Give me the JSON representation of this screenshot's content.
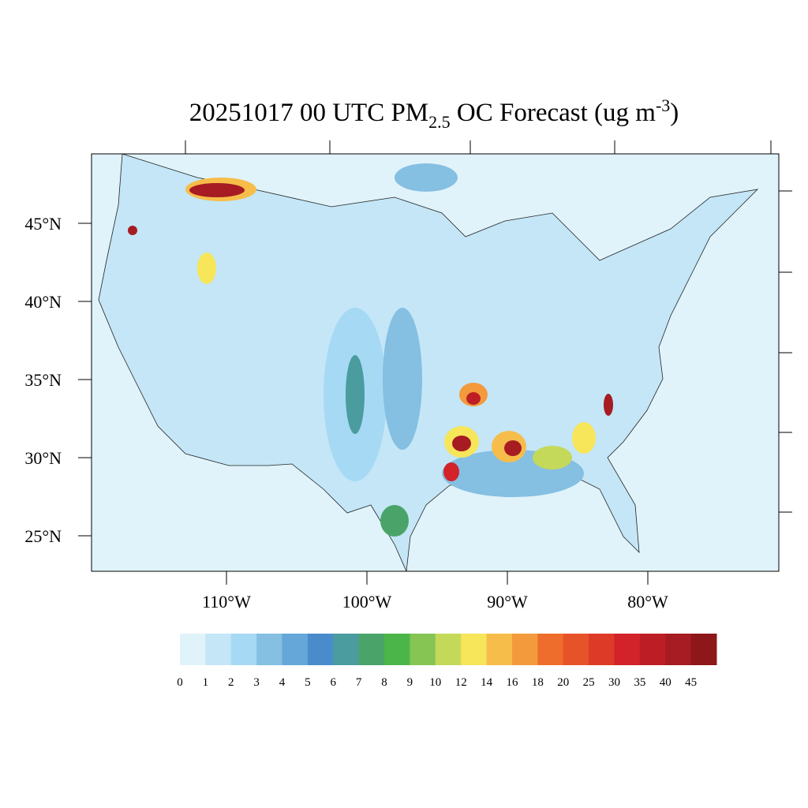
{
  "header": {
    "title_main": "20251017 00 UTC PM",
    "title_sub": "2.5",
    "title_rest": " OC Forecast (ug m",
    "title_sup": "-3",
    "title_end": ")"
  },
  "map": {
    "lat_labels": [
      "45°N",
      "40°N",
      "35°N",
      "30°N",
      "25°N"
    ],
    "lon_labels": [
      "110°W",
      "100°W",
      "90°W",
      "80°W"
    ]
  },
  "colorbar": {
    "labels": [
      0,
      1,
      2,
      3,
      4,
      5,
      6,
      7,
      8,
      9,
      10,
      12,
      14,
      16,
      18,
      20,
      25,
      30,
      35,
      40,
      45
    ],
    "colors": [
      "#e0f3fa",
      "#c4e6f7",
      "#a6d9f4",
      "#85bfe2",
      "#64a7d8",
      "#4a8ccb",
      "#4a9c9e",
      "#4aa46a",
      "#4cb54a",
      "#86c553",
      "#c4d95a",
      "#f7e55a",
      "#f7bd4a",
      "#f39a3c",
      "#ef6d2c",
      "#e75329",
      "#dd3b27",
      "#d2222a",
      "#bd1e25",
      "#a61c22",
      "#8d1719"
    ]
  }
}
